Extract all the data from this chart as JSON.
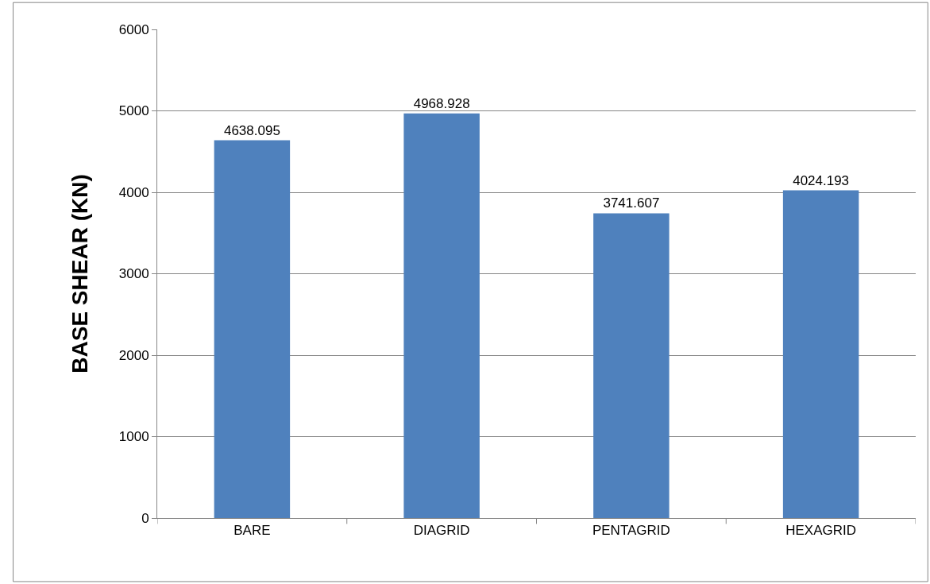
{
  "chart_data": {
    "type": "bar",
    "ylabel": "BASE SHEAR (KN)",
    "categories": [
      "BARE",
      "DIAGRID",
      "PENTAGRID",
      "HEXAGRID"
    ],
    "values": [
      4638.095,
      4968.928,
      3741.607,
      4024.193
    ],
    "color": "#4f81bd",
    "ylim": [
      0,
      6000
    ],
    "yticks": [
      0,
      1000,
      2000,
      3000,
      4000,
      5000,
      6000
    ],
    "grid": "y",
    "data_labels": true
  }
}
